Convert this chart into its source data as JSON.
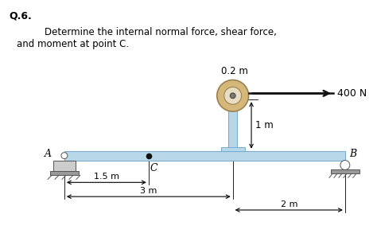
{
  "title_q": "Q.6.",
  "description_line1": "Determine the internal normal force, shear force,",
  "description_line2": "and moment at point C.",
  "label_02m": "0.2 m",
  "label_400N": "400 N",
  "label_1m": "1 m",
  "label_A": "A",
  "label_B": "B",
  "label_C": "C",
  "label_15m": "1.5 m",
  "label_3m": "3 m",
  "label_2m": "2 m",
  "beam_color": "#b8d8ea",
  "beam_edge": "#7aabcc",
  "post_color": "#b8d8ea",
  "pulley_color": "#d4b87a",
  "pulley_edge": "#9a8050",
  "background": "#ffffff",
  "text_color": "#000000",
  "support_fill": "#cccccc",
  "support_edge": "#555555"
}
